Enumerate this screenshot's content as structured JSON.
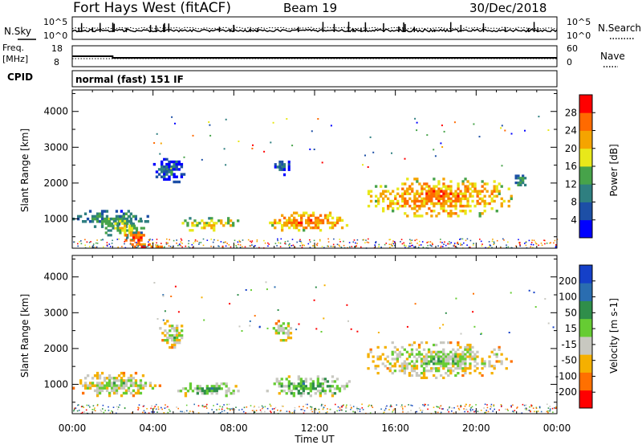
{
  "header": {
    "station": "Fort Hays West (fitACF)",
    "beam": "Beam 19",
    "date": "30/Dec/2018"
  },
  "strip": {
    "nsky_label": "N.Sky",
    "nsearch_label": "N.Search",
    "freq_label_1": "Freq.",
    "freq_label_2": "[MHz]",
    "nave_label": "Nave",
    "cpid_label": "CPID",
    "cpid_text": "normal (fast) 151 IF",
    "noise_ticks": [
      "10^5",
      "10^0"
    ],
    "freq_ticks": [
      "18",
      "8"
    ],
    "nave_ticks": [
      "60",
      "0"
    ]
  },
  "axes": {
    "time_ticks": [
      "00:00",
      "04:00",
      "08:00",
      "12:00",
      "16:00",
      "20:00",
      "00:00"
    ],
    "xlabel": "Time UT",
    "range_ticks": [
      "1000",
      "2000",
      "3000",
      "4000"
    ],
    "ylabel": "Slant Range [km]"
  },
  "colorbars": {
    "power": {
      "label": "Power [dB]",
      "ticks": [
        "4",
        "8",
        "12",
        "16",
        "20",
        "24",
        "28"
      ],
      "colors": [
        "#0000ff",
        "#1d4fa6",
        "#2f7f80",
        "#47a34a",
        "#e8e81a",
        "#f5a400",
        "#ff6a00",
        "#ff0000"
      ]
    },
    "velocity": {
      "label": "Velocity [m s-1]",
      "ticks": [
        "200",
        "100",
        "50",
        "15",
        "-15",
        "-50",
        "-100",
        "-200"
      ],
      "colors": [
        "#1540c8",
        "#2a6db0",
        "#2f8e4a",
        "#66cc33",
        "#c8c8c0",
        "#f5b000",
        "#ff7000",
        "#ff0000"
      ]
    }
  },
  "chart_data": [
    {
      "type": "heatmap",
      "title": "Power",
      "xlabel": "Time UT",
      "ylabel": "Slant Range [km]",
      "xlim": [
        0,
        24
      ],
      "ylim": [
        180,
        4600
      ],
      "colorbar": "power",
      "regions": [
        {
          "t": [
            0.0,
            3.8
          ],
          "r": [
            750,
            1250
          ],
          "level": 3
        },
        {
          "t": [
            1.5,
            3.6
          ],
          "r": [
            450,
            1100
          ],
          "level": 4
        },
        {
          "t": [
            2.6,
            3.6
          ],
          "r": [
            300,
            650
          ],
          "level": 7
        },
        {
          "t": [
            2.8,
            4.6
          ],
          "r": [
            190,
            320
          ],
          "level": 7
        },
        {
          "t": [
            5.3,
            8.5
          ],
          "r": [
            650,
            1050
          ],
          "level": 5
        },
        {
          "t": [
            9.5,
            13.9
          ],
          "r": [
            650,
            1200
          ],
          "level": 6
        },
        {
          "t": [
            14.5,
            21.8
          ],
          "r": [
            1050,
            2150
          ],
          "level": 6
        },
        {
          "t": [
            4.0,
            5.6
          ],
          "r": [
            2000,
            2700
          ],
          "level": 2
        },
        {
          "t": [
            10.0,
            10.9
          ],
          "r": [
            2200,
            2700
          ],
          "level": 2
        },
        {
          "t": [
            21.8,
            22.6
          ],
          "r": [
            1850,
            2300
          ],
          "level": 3
        }
      ]
    },
    {
      "type": "heatmap",
      "title": "Velocity",
      "xlabel": "Time UT",
      "ylabel": "Slant Range [km]",
      "xlim": [
        0,
        24
      ],
      "ylim": [
        180,
        4600
      ],
      "colorbar": "velocity",
      "regions": [
        {
          "t": [
            0.0,
            4.4
          ],
          "r": [
            650,
            1350
          ],
          "level": 4
        },
        {
          "t": [
            5.2,
            8.4
          ],
          "r": [
            650,
            1050
          ],
          "level": 5
        },
        {
          "t": [
            9.6,
            13.9
          ],
          "r": [
            650,
            1250
          ],
          "level": 5
        },
        {
          "t": [
            14.6,
            21.8
          ],
          "r": [
            1150,
            2200
          ],
          "level": 4
        },
        {
          "t": [
            4.3,
            5.6
          ],
          "r": [
            2000,
            2800
          ],
          "level": 4
        },
        {
          "t": [
            9.8,
            11.0
          ],
          "r": [
            2200,
            2800
          ],
          "level": 4
        }
      ]
    }
  ]
}
